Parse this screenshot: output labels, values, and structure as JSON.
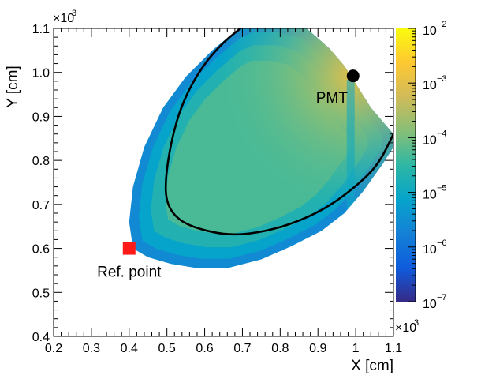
{
  "chart_data": {
    "type": "heatmap",
    "title": "",
    "xlabel": "X [cm]",
    "ylabel": "Y [cm]",
    "x_multiplier": "×10",
    "y_multiplier": "×10",
    "multiplier_exp": "3",
    "xlim": [
      0.2,
      1.1
    ],
    "ylim": [
      0.4,
      1.1
    ],
    "x_ticks": [
      "0.2",
      "0.3",
      "0.4",
      "0.5",
      "0.6",
      "0.7",
      "0.8",
      "0.9",
      "1",
      "1.1"
    ],
    "y_ticks": [
      "0.4",
      "0.5",
      "0.6",
      "0.7",
      "0.8",
      "0.9",
      "1.0",
      "1.1"
    ],
    "colorbar": {
      "scale": "log",
      "min_exp": -7,
      "max_exp": -2,
      "labels": [
        {
          "base": "10",
          "exp": "−2",
          "value_exp": -2
        },
        {
          "base": "10",
          "exp": "−3",
          "value_exp": -3
        },
        {
          "base": "10",
          "exp": "−4",
          "value_exp": -4
        },
        {
          "base": "10",
          "exp": "−5",
          "value_exp": -5
        },
        {
          "base": "10",
          "exp": "−6",
          "value_exp": -6
        },
        {
          "base": "10",
          "exp": "−7",
          "value_exp": -7
        }
      ],
      "colors": [
        "#352a87",
        "#0f5cdd",
        "#1481d6",
        "#06a4ca",
        "#2eb7a4",
        "#87bf77",
        "#d1bb59",
        "#fec832",
        "#f9fb0e"
      ]
    },
    "region_outline": [
      [
        0.41,
        0.6
      ],
      [
        0.4,
        0.66
      ],
      [
        0.41,
        0.74
      ],
      [
        0.44,
        0.83
      ],
      [
        0.49,
        0.92
      ],
      [
        0.55,
        0.99
      ],
      [
        0.62,
        1.05
      ],
      [
        0.69,
        1.1
      ],
      [
        0.73,
        1.115
      ],
      [
        0.8,
        1.115
      ],
      [
        0.87,
        1.1
      ],
      [
        0.93,
        1.055
      ],
      [
        0.97,
        1.015
      ],
      [
        1.0,
        0.975
      ],
      [
        1.04,
        0.92
      ],
      [
        1.08,
        0.88
      ],
      [
        1.1,
        0.86
      ],
      [
        1.1,
        0.83
      ],
      [
        1.07,
        0.79
      ],
      [
        1.02,
        0.73
      ],
      [
        0.97,
        0.68
      ],
      [
        0.91,
        0.64
      ],
      [
        0.83,
        0.605
      ],
      [
        0.75,
        0.575
      ],
      [
        0.66,
        0.555
      ],
      [
        0.58,
        0.555
      ],
      [
        0.51,
        0.565
      ],
      [
        0.45,
        0.58
      ],
      [
        0.41,
        0.6
      ]
    ],
    "field_log_values": {
      "pmt_peak": -3.0,
      "center": -4.3,
      "edge": -5.6
    },
    "contour": [
      [
        0.71,
        1.11
      ],
      [
        0.65,
        1.07
      ],
      [
        0.59,
        1.01
      ],
      [
        0.54,
        0.93
      ],
      [
        0.51,
        0.84
      ],
      [
        0.495,
        0.75
      ],
      [
        0.5,
        0.7
      ],
      [
        0.53,
        0.665
      ],
      [
        0.58,
        0.645
      ],
      [
        0.66,
        0.63
      ],
      [
        0.74,
        0.635
      ],
      [
        0.83,
        0.655
      ],
      [
        0.92,
        0.69
      ],
      [
        1.0,
        0.74
      ],
      [
        1.06,
        0.79
      ],
      [
        1.1,
        0.86
      ]
    ],
    "markers": [
      {
        "name": "pmt",
        "label": "PMT",
        "x": 0.993,
        "y": 0.992,
        "shape": "circle",
        "color": "#000000"
      },
      {
        "name": "ref-point",
        "label": "Ref. point",
        "x": 0.4,
        "y": 0.6,
        "shape": "square",
        "color": "#ff1a1a"
      }
    ]
  }
}
